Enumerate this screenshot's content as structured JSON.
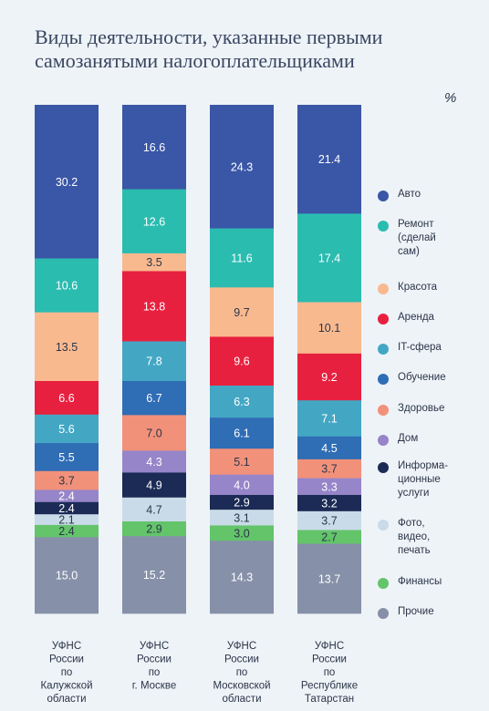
{
  "title": "Виды деятельности, указанные первыми самозанятыми налогоплательщиками",
  "unit": "%",
  "chart_data": {
    "type": "bar",
    "stacked": true,
    "categories": [
      "УФНС\nРоссии\nпо\nКалужской\nобласти",
      "УФНС\nРоссии\nпо\nг. Москве",
      "УФНС\nРоссии\nпо\nМосковской\nобласти",
      "УФНС\nРоссии\nпо\nРеспублике\nТатарстан"
    ],
    "series": [
      {
        "name": "Авто",
        "color": "#3a56a6",
        "values": [
          30.2,
          16.6,
          24.3,
          21.4
        ]
      },
      {
        "name": "Ремонт\n(сделай\nсам)",
        "color": "#2bbcb0",
        "values": [
          10.6,
          12.6,
          11.6,
          17.4
        ]
      },
      {
        "name": "Красота",
        "color": "#f9b98f",
        "values": [
          13.5,
          3.5,
          9.7,
          10.1
        ]
      },
      {
        "name": "Аренда",
        "color": "#e8203f",
        "values": [
          6.6,
          13.8,
          9.6,
          9.2
        ]
      },
      {
        "name": "IT-сфера",
        "color": "#43a7c4",
        "values": [
          5.6,
          7.8,
          6.3,
          7.1
        ]
      },
      {
        "name": "Обучение",
        "color": "#2f6db5",
        "values": [
          5.5,
          6.7,
          6.1,
          4.5
        ]
      },
      {
        "name": "Здоровье",
        "color": "#f2917a",
        "values": [
          3.7,
          7.0,
          5.1,
          3.7
        ]
      },
      {
        "name": "Дом",
        "color": "#9685c9",
        "values": [
          2.4,
          4.3,
          4.0,
          3.3
        ]
      },
      {
        "name": "Информа-\nционные\nуслуги",
        "color": "#1b2b55",
        "values": [
          2.4,
          4.9,
          2.9,
          3.2
        ]
      },
      {
        "name": "Фото,\nвидео,\nпечать",
        "color": "#c9dbe8",
        "values": [
          2.1,
          4.7,
          3.1,
          3.7
        ]
      },
      {
        "name": "Финансы",
        "color": "#63c46a",
        "values": [
          2.4,
          2.9,
          3.0,
          2.7
        ]
      },
      {
        "name": "Прочие",
        "color": "#8690a9",
        "values": [
          15.0,
          15.2,
          14.3,
          13.7
        ]
      }
    ],
    "label_colors": {
      "light": "#ffffff",
      "dark": "#2b3548"
    },
    "light_series": [
      "Красота",
      "Здоровье",
      "Фото,\nвидео,\nпечать",
      "Финансы"
    ],
    "legend_position": "right",
    "ylim": [
      0,
      100
    ],
    "grid": false
  }
}
